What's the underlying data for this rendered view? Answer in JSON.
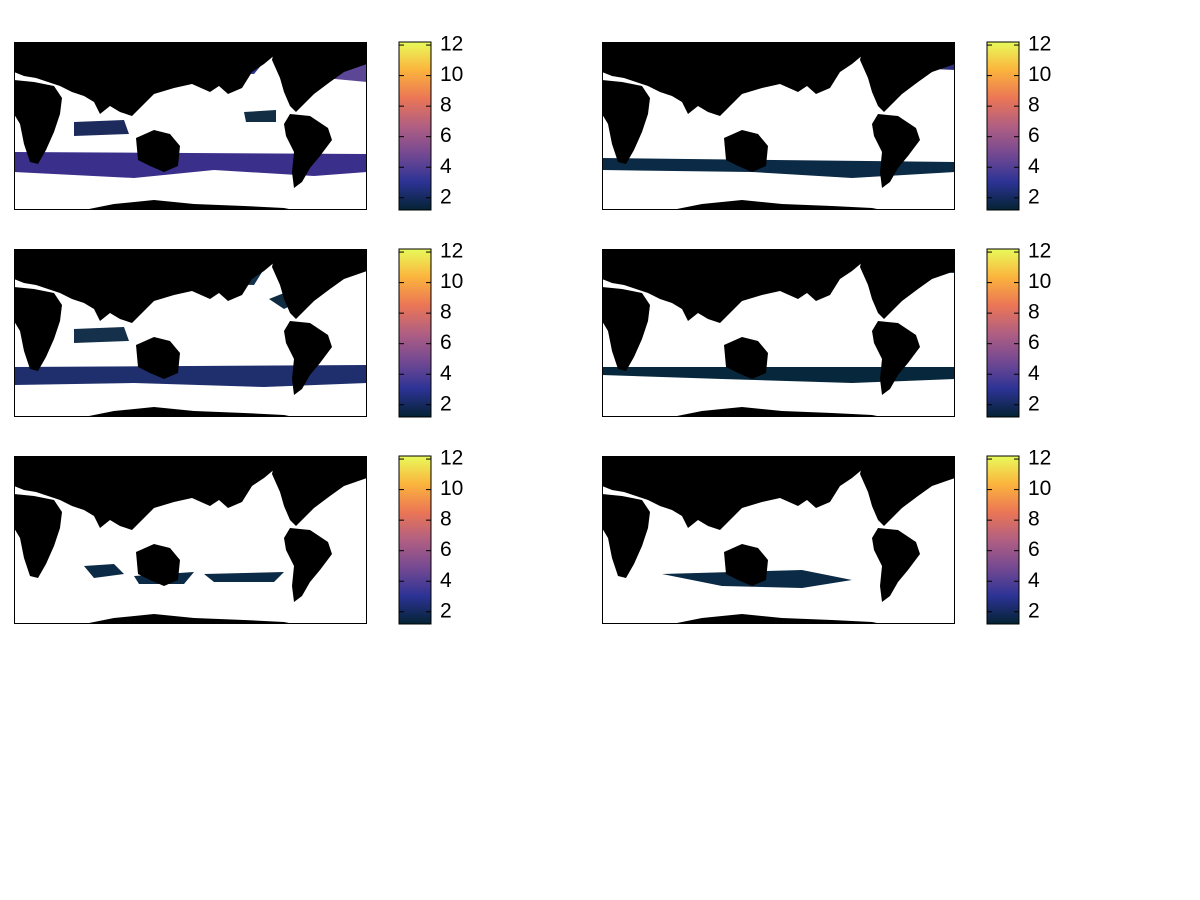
{
  "chart_data": [
    {
      "type": "heatmap",
      "colormap": [
        "#042333",
        "#2c3395",
        "#744992",
        "#b15f82",
        "#eb7655",
        "#fbb43d",
        "#e8fa5b"
      ],
      "ylim": [
        1.2,
        12.2
      ],
      "yticks": [
        2,
        4,
        6,
        8,
        10,
        12
      ]
    },
    {
      "type": "heatmap",
      "colormap": [
        "#042333",
        "#2c3395",
        "#744992",
        "#b15f82",
        "#eb7655",
        "#fbb43d",
        "#e8fa5b"
      ],
      "ylim": [
        1.2,
        12.2
      ],
      "yticks": [
        2,
        4,
        6,
        8,
        10,
        12
      ]
    },
    {
      "type": "heatmap",
      "colormap": [
        "#042333",
        "#2c3395",
        "#744992",
        "#b15f82",
        "#eb7655",
        "#fbb43d",
        "#e8fa5b"
      ],
      "ylim": [
        1.2,
        12.2
      ],
      "yticks": [
        2,
        4,
        6,
        8,
        10,
        12
      ]
    },
    {
      "type": "heatmap",
      "colormap": [
        "#042333",
        "#2c3395",
        "#744992",
        "#b15f82",
        "#eb7655",
        "#fbb43d",
        "#e8fa5b"
      ],
      "ylim": [
        1.2,
        12.2
      ],
      "yticks": [
        2,
        4,
        6,
        8,
        10,
        12
      ]
    },
    {
      "type": "heatmap",
      "colormap": [
        "#042333",
        "#2c3395",
        "#744992",
        "#b15f82",
        "#eb7655",
        "#fbb43d",
        "#e8fa5b"
      ],
      "ylim": [
        1.2,
        12.2
      ],
      "yticks": [
        2,
        4,
        6,
        8,
        10,
        12
      ]
    },
    {
      "type": "heatmap",
      "colormap": [
        "#042333",
        "#2c3395",
        "#744992",
        "#b15f82",
        "#eb7655",
        "#fbb43d",
        "#e8fa5b"
      ],
      "ylim": [
        1.2,
        12.2
      ],
      "yticks": [
        2,
        4,
        6,
        8,
        10,
        12
      ]
    }
  ]
}
